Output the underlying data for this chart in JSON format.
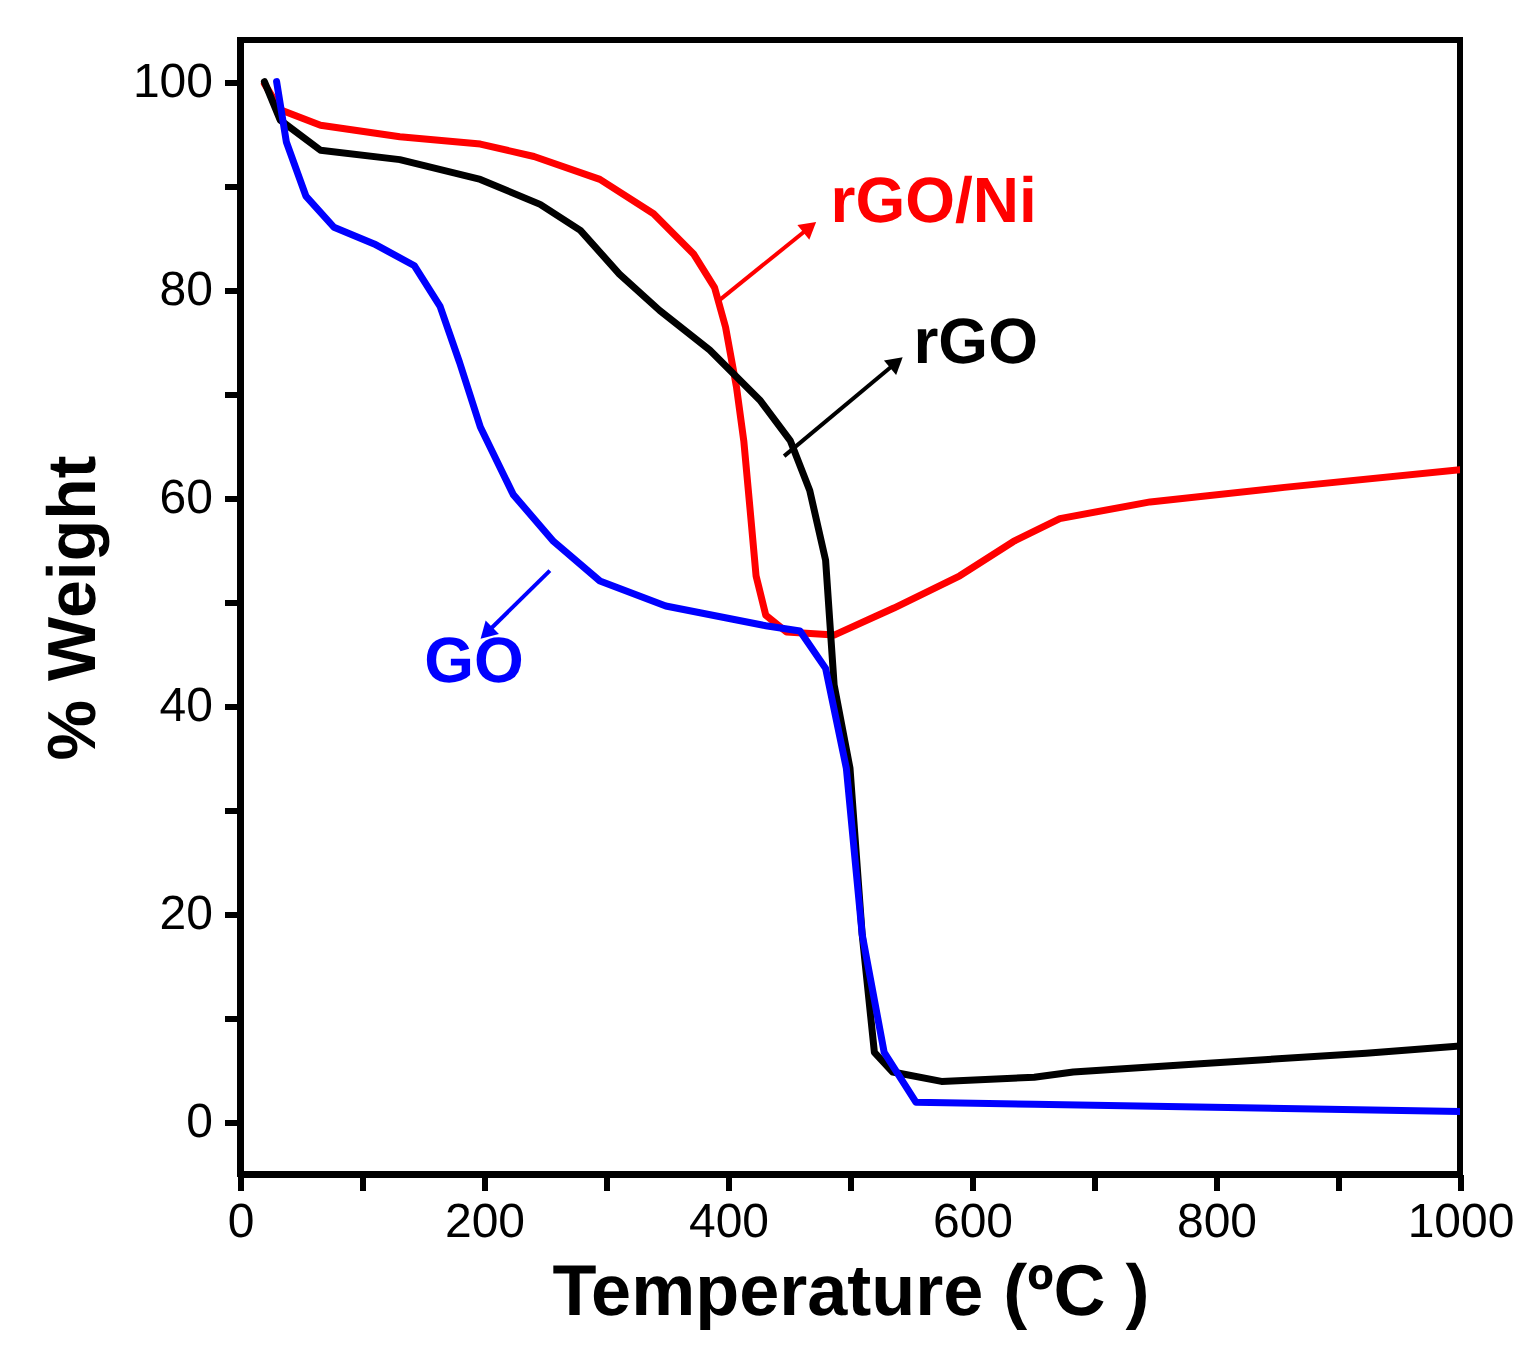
{
  "chart_data": {
    "type": "line",
    "xlabel": "Temperature  (ºC )",
    "ylabel": "% Weight",
    "xlim": [
      0,
      1000
    ],
    "ylim": [
      -5,
      104
    ],
    "xticks": [
      0,
      {
        "value": 100,
        "label": null
      },
      200,
      {
        "value": 300,
        "label": null
      },
      400,
      {
        "value": 500,
        "label": null
      },
      600,
      {
        "value": 700,
        "label": null
      },
      800,
      {
        "value": 900,
        "label": null
      },
      1000
    ],
    "yticks": [
      0,
      {
        "value": 10,
        "label": null
      },
      20,
      {
        "value": 30,
        "label": null
      },
      40,
      {
        "value": 50,
        "label": null
      },
      60,
      {
        "value": 70,
        "label": null
      },
      80,
      {
        "value": 90,
        "label": null
      },
      100
    ],
    "grid": false,
    "legend": "top right",
    "marker": "none",
    "line_style": "solid",
    "series": [
      {
        "name": "rGO/Ni",
        "color": "#ff0000",
        "x": [
          20,
          33,
          66,
          131,
          197,
          241,
          295,
          339,
          372,
          389,
          398,
          407,
          413,
          418,
          423,
          431,
          448,
          487,
          536,
          590,
          634,
          672,
          746,
          856,
          1000
        ],
        "values": [
          99.8,
          97.3,
          95.8,
          94.7,
          94,
          92.8,
          90.6,
          87.3,
          83.4,
          80.2,
          76.4,
          70.6,
          65.4,
          59,
          52.5,
          48.7,
          47.1,
          46.8,
          49.4,
          52.5,
          55.8,
          58,
          59.6,
          61,
          62.7
        ]
      },
      {
        "name": "rGO",
        "color": "#000000",
        "x": [
          20,
          33,
          66,
          131,
          197,
          246,
          279,
          311,
          344,
          385,
          426,
          451,
          467,
          480,
          487,
          500,
          510,
          520,
          535,
          575,
          651,
          683,
          787,
          923,
          1000
        ],
        "values": [
          100,
          96.3,
          93.4,
          92.5,
          90.6,
          88.2,
          85.7,
          81.5,
          78,
          74.2,
          69.4,
          65.5,
          60.7,
          54,
          42,
          34,
          18,
          6.7,
          4.8,
          3.9,
          4.3,
          4.8,
          5.6,
          6.6,
          7.3
        ]
      },
      {
        "name": "GO",
        "color": "#0000ff",
        "x": [
          30,
          38,
          54,
          77,
          110,
          143,
          164,
          180,
          197,
          224,
          257,
          295,
          349,
          431,
          459,
          480,
          497,
          510,
          528,
          554,
          651,
          856,
          1000
        ],
        "values": [
          100,
          94.2,
          89,
          86,
          84.4,
          82.3,
          78.4,
          73,
          66.8,
          60.3,
          55.8,
          52,
          49.6,
          47.7,
          47.2,
          43.6,
          34,
          18,
          6.7,
          1.9,
          1.7,
          1.3,
          1.0
        ]
      }
    ]
  }
}
